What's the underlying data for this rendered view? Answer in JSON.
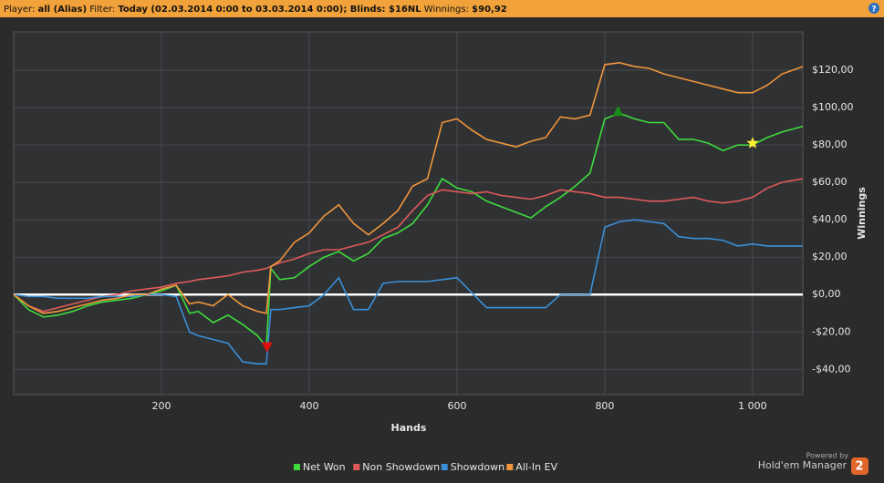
{
  "header": {
    "player_label": "Player:",
    "player": "all (Alias)",
    "filter_label": "Filter:",
    "filter": "Today (02.03.2014 0:00 to 03.03.2014 0:00); Blinds: $16NL",
    "winnings_label": "Winnings:",
    "winnings": "$90,92",
    "help": "?"
  },
  "footer": {
    "powered": "Powered by",
    "brand": "Hold'em Manager",
    "version": "2"
  },
  "chart_data": {
    "type": "line",
    "x_label": "Hands",
    "y_label": "Winnings",
    "x": [
      0,
      20,
      40,
      60,
      80,
      100,
      120,
      140,
      160,
      180,
      200,
      220,
      238,
      250,
      270,
      290,
      310,
      330,
      342,
      348,
      360,
      380,
      400,
      420,
      440,
      460,
      480,
      500,
      520,
      540,
      560,
      580,
      600,
      620,
      640,
      660,
      680,
      700,
      720,
      740,
      760,
      780,
      800,
      820,
      840,
      860,
      880,
      900,
      920,
      940,
      960,
      980,
      1000,
      1020,
      1040,
      1068
    ],
    "series": [
      {
        "name": "Net Won",
        "color": "#3ddc3d",
        "values": [
          0,
          -8,
          -12,
          -11,
          -9,
          -6,
          -4,
          -3,
          -2,
          0,
          2,
          5,
          -10,
          -9,
          -15,
          -11,
          -16,
          -22,
          -28,
          14,
          8,
          9,
          15,
          20,
          23,
          18,
          22,
          30,
          33,
          38,
          48,
          62,
          57,
          55,
          50,
          47,
          44,
          41,
          47,
          52,
          58,
          65,
          94,
          97,
          94,
          92,
          92,
          83,
          83,
          81,
          77,
          80,
          80,
          84,
          87,
          90
        ]
      },
      {
        "name": "Non Showdown",
        "color": "#e05a5a",
        "values": [
          0,
          -6,
          -9,
          -7,
          -5,
          -3,
          -1,
          0,
          2,
          3,
          4,
          6,
          7,
          8,
          9,
          10,
          12,
          13,
          14,
          15,
          17,
          19,
          22,
          24,
          24,
          26,
          28,
          32,
          36,
          45,
          53,
          56,
          55,
          54,
          55,
          53,
          52,
          51,
          53,
          56,
          55,
          54,
          52,
          52,
          51,
          50,
          50,
          51,
          52,
          50,
          49,
          50,
          52,
          57,
          60,
          62
        ]
      },
      {
        "name": "Showdown",
        "color": "#3a8fd8",
        "values": [
          0,
          -1,
          -1,
          -2,
          -2,
          -2,
          -1,
          -1,
          -1,
          0,
          0,
          -1,
          -20,
          -22,
          -24,
          -26,
          -36,
          -37,
          -37,
          -8,
          -8,
          -7,
          -6,
          0,
          9,
          -8,
          -8,
          6,
          7,
          7,
          7,
          8,
          9,
          1,
          -7,
          -7,
          -7,
          -7,
          -7,
          0,
          0,
          0,
          36,
          39,
          40,
          39,
          38,
          31,
          30,
          30,
          29,
          26,
          27,
          26,
          26,
          26
        ]
      },
      {
        "name": "All-In EV",
        "color": "#f0963c",
        "values": [
          0,
          -6,
          -10,
          -9,
          -7,
          -5,
          -3,
          -2,
          0,
          0,
          3,
          5,
          -5,
          -4,
          -6,
          0,
          -6,
          -9,
          -10,
          15,
          18,
          28,
          33,
          42,
          48,
          38,
          32,
          38,
          45,
          58,
          62,
          92,
          94,
          88,
          83,
          81,
          79,
          82,
          84,
          95,
          94,
          96,
          123,
          124,
          122,
          121,
          118,
          116,
          114,
          112,
          110,
          108,
          108,
          112,
          118,
          122
        ]
      }
    ],
    "markers": [
      {
        "x": 343,
        "y": -28,
        "color": "#e01010",
        "shape": "triangle-down"
      },
      {
        "x": 818,
        "y": 98,
        "color": "#1a8a1a",
        "shape": "triangle-up"
      },
      {
        "x": 1000,
        "y": 81,
        "color": "#ffee33",
        "shape": "star"
      }
    ],
    "xlim": [
      0,
      1068
    ],
    "ylim": [
      -53.5,
      140.5
    ],
    "xticks": [
      200,
      400,
      600,
      800,
      {
        "value": 1000,
        "label": "1 000"
      }
    ],
    "yticks": [
      {
        "value": -40,
        "label": "-$40,00"
      },
      {
        "value": -20,
        "label": "-$20,00"
      },
      {
        "value": 0,
        "label": "$0,00"
      },
      {
        "value": 20,
        "label": "$20,00"
      },
      {
        "value": 40,
        "label": "$40,00"
      },
      {
        "value": 60,
        "label": "$60,00"
      },
      {
        "value": 80,
        "label": "$80,00"
      },
      {
        "value": 100,
        "label": "$100,00"
      },
      {
        "value": 120,
        "label": "$120,00"
      }
    ],
    "grid": true,
    "legend": "bottom"
  }
}
